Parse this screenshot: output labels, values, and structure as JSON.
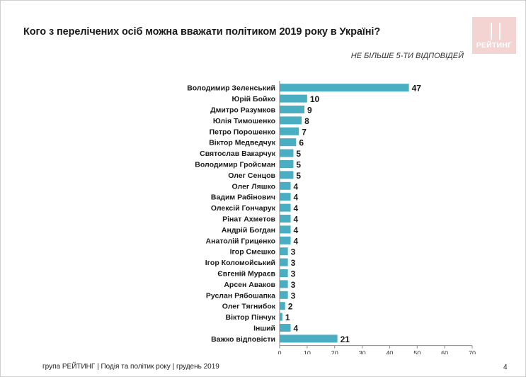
{
  "header": {
    "title": "Кого з перелічених осіб можна вважати політиком 2019 року в Україні?",
    "subtitle": "НЕ БІЛЬШЕ 5-ТИ ВІДПОВІДЕЙ",
    "logo_text": "РЕЙТИНГ"
  },
  "footer": {
    "text": "група РЕЙТИНГ | Подія та політик року | грудень 2019",
    "page_number": "4"
  },
  "chart_data": {
    "type": "bar",
    "orientation": "horizontal",
    "categories": [
      "Володимир Зеленський",
      "Юрій Бойко",
      "Дмитро Разумков",
      "Юлія Тимошенко",
      "Петро Порошенко",
      "Віктор Медведчук",
      "Святослав Вакарчук",
      "Володимир Гройсман",
      "Олег Сенцов",
      "Олег Ляшко",
      "Вадим Рабінович",
      "Олексій Гончарук",
      "Рінат Ахметов",
      "Андрій Богдан",
      "Анатолій Гриценко",
      "Ігор Смешко",
      "Ігор Коломойський",
      "Євгеній Мураєв",
      "Арсен Аваков",
      "Руслан Рябошапка",
      "Олег Тягнибок",
      "Віктор Пінчук",
      "Інший",
      "Важко відповісти"
    ],
    "values": [
      47,
      10,
      9,
      8,
      7,
      6,
      5,
      5,
      5,
      4,
      4,
      4,
      4,
      4,
      4,
      3,
      3,
      3,
      3,
      3,
      2,
      1,
      4,
      21
    ],
    "xlim": [
      0,
      70
    ],
    "xticks": [
      0,
      10,
      20,
      30,
      40,
      50,
      60,
      70
    ],
    "bar_color": "#4aaec2",
    "grid": false,
    "legend": "none"
  }
}
